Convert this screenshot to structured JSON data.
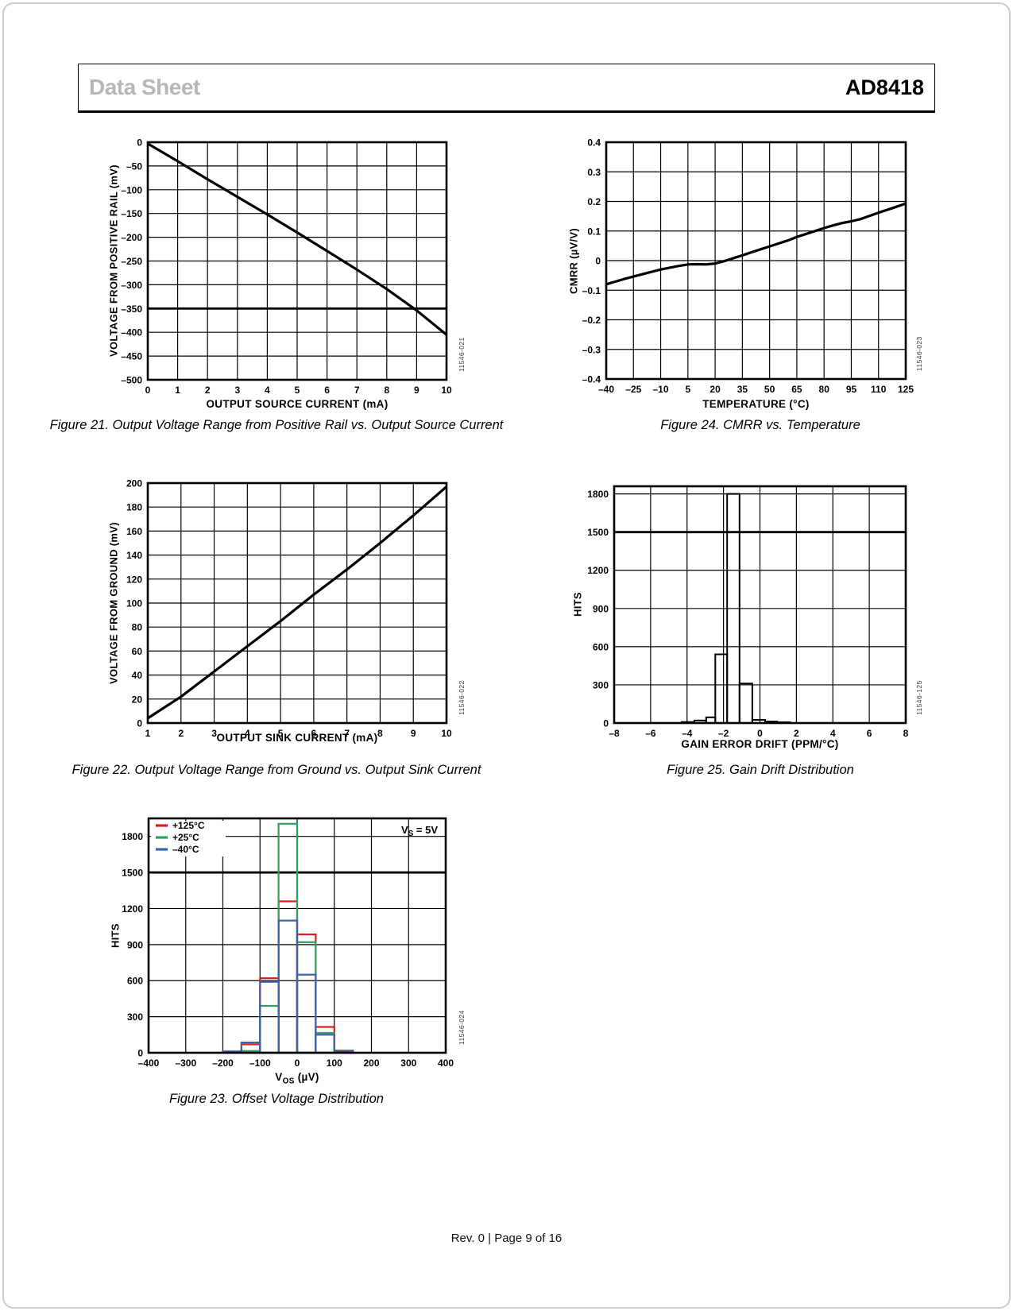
{
  "header": {
    "doc_type": "Data Sheet",
    "part_number": "AD8418"
  },
  "footer": {
    "text": "Rev. 0 | Page 9 of 16"
  },
  "chart_data": [
    {
      "id": "figure-21",
      "type": "line",
      "caption": "Figure 21. Output Voltage Range from Positive Rail vs. Output Source Current",
      "code": "11546-021",
      "xlabel": "OUTPUT SOURCE CURRENT (mA)",
      "ylabel": "VOLTAGE FROM POSITIVE RAIL (mV)",
      "xlim": [
        0,
        10
      ],
      "ylim": [
        -500,
        0
      ],
      "xticks": [
        0,
        1,
        2,
        3,
        4,
        5,
        6,
        7,
        8,
        9,
        10
      ],
      "xtick_labels": [
        "0",
        "1",
        "2",
        "3",
        "4",
        "5",
        "6",
        "7",
        "8",
        "9",
        "10"
      ],
      "yticks": [
        0,
        -50,
        -100,
        -150,
        -200,
        -250,
        -300,
        -350,
        -400,
        -450,
        -500
      ],
      "ytick_labels": [
        "0",
        "–50",
        "–100",
        "–150",
        "–200",
        "–250",
        "–300",
        "–350",
        "–400",
        "–450",
        "–500"
      ],
      "bold_hgrid": [
        -350
      ],
      "grid": true,
      "series": [
        {
          "name": "voltage-from-positive-rail",
          "color": "#000000",
          "width": 3.2,
          "x": [
            0,
            1,
            2,
            3,
            4,
            5,
            6,
            7,
            8,
            9,
            10
          ],
          "y": [
            -3,
            -40,
            -78,
            -115,
            -152,
            -190,
            -229,
            -268,
            -309,
            -354,
            -405
          ]
        }
      ]
    },
    {
      "id": "figure-22",
      "type": "line",
      "caption": "Figure 22. Output Voltage Range from Ground vs. Output Sink Current",
      "code": "11546-022",
      "xlabel": "OUTPUT SINK CURRENT (mA)",
      "ylabel": "VOLTAGE FROM GROUND (mV)",
      "xlim": [
        1,
        10
      ],
      "ylim": [
        0,
        200
      ],
      "xticks": [
        1,
        2,
        3,
        4,
        5,
        6,
        7,
        8,
        9,
        10
      ],
      "xtick_labels": [
        "1",
        "2",
        "3",
        "4",
        "5",
        "6",
        "7",
        "8",
        "9",
        "10"
      ],
      "yticks": [
        200,
        180,
        160,
        140,
        120,
        100,
        80,
        60,
        40,
        20,
        0
      ],
      "ytick_labels": [
        "200",
        "180",
        "160",
        "140",
        "120",
        "100",
        "80",
        "60",
        "40",
        "20",
        "0"
      ],
      "grid": true,
      "series": [
        {
          "name": "voltage-from-ground",
          "color": "#000000",
          "width": 3.2,
          "x": [
            1,
            2,
            3,
            4,
            5,
            6,
            7,
            8,
            9,
            10
          ],
          "y": [
            4,
            22,
            43,
            64,
            85,
            107,
            128,
            150,
            173,
            197
          ]
        }
      ]
    },
    {
      "id": "figure-23",
      "type": "histogram-multi",
      "caption": "Figure 23. Offset Voltage Distribution",
      "code": "11546-024",
      "xlabel_parts": {
        "pre": "V",
        "sub": "OS",
        "post": " (µV)"
      },
      "ylabel": "HITS",
      "xlim": [
        -400,
        400
      ],
      "ylim": [
        0,
        1950
      ],
      "xticks": [
        -400,
        -300,
        -200,
        -100,
        0,
        100,
        200,
        300,
        400
      ],
      "xtick_labels": [
        "–400",
        "–300",
        "–200",
        "–100",
        "0",
        "100",
        "200",
        "300",
        "400"
      ],
      "yticks": [
        0,
        300,
        600,
        900,
        1200,
        1500,
        1800
      ],
      "ytick_labels": [
        "0",
        "300",
        "600",
        "900",
        "1200",
        "1500",
        "1800"
      ],
      "bold_hgrid": [
        1500
      ],
      "grid": true,
      "show_legend": true,
      "annotation": {
        "pre": "V",
        "sub": "S",
        "post": " = 5V"
      },
      "bin_edges": [
        -200,
        -150,
        -100,
        -50,
        0,
        50,
        100,
        150
      ],
      "series": [
        {
          "name": "+125°C",
          "color": "#e01a1f",
          "values": [
            0,
            70,
            620,
            1260,
            985,
            215,
            18
          ]
        },
        {
          "name": "+25°C",
          "color": "#2f9e5f",
          "values": [
            0,
            15,
            390,
            1905,
            920,
            165,
            6
          ]
        },
        {
          "name": "–40°C",
          "color": "#3c61a8",
          "values": [
            12,
            85,
            590,
            1100,
            650,
            150,
            12
          ]
        }
      ]
    },
    {
      "id": "figure-24",
      "type": "line",
      "caption": "Figure 24. CMRR vs. Temperature",
      "code": "11546-023",
      "xlabel": "TEMPERATURE (°C)",
      "ylabel": "CMRR (µV/V)",
      "xlim": [
        -40,
        125
      ],
      "ylim": [
        -0.4,
        0.4
      ],
      "xticks": [
        -40,
        -25,
        -10,
        5,
        20,
        35,
        50,
        65,
        80,
        95,
        110,
        125
      ],
      "xtick_labels": [
        "–40",
        "–25",
        "–10",
        "5",
        "20",
        "35",
        "50",
        "65",
        "80",
        "95",
        "110",
        "125"
      ],
      "yticks": [
        0.4,
        0.3,
        0.2,
        0.1,
        0,
        -0.1,
        -0.2,
        -0.3,
        -0.4
      ],
      "ytick_labels": [
        "0.4",
        "0.3",
        "0.2",
        "0.1",
        "0",
        "–0.1",
        "–0.2",
        "–0.3",
        "–0.4"
      ],
      "grid": true,
      "series": [
        {
          "name": "cmrr",
          "color": "#000000",
          "width": 3.2,
          "x": [
            -40,
            -30,
            -20,
            -10,
            0,
            5,
            10,
            15,
            20,
            25,
            30,
            35,
            45,
            50,
            60,
            65,
            75,
            80,
            85,
            90,
            95,
            100,
            110,
            118,
            125
          ],
          "y": [
            -0.08,
            -0.062,
            -0.046,
            -0.03,
            -0.018,
            -0.013,
            -0.012,
            -0.013,
            -0.01,
            -0.002,
            0.008,
            0.018,
            0.038,
            0.048,
            0.068,
            0.08,
            0.1,
            0.11,
            0.119,
            0.127,
            0.133,
            0.14,
            0.162,
            0.178,
            0.193
          ]
        }
      ]
    },
    {
      "id": "figure-25",
      "type": "histogram",
      "caption": "Figure 25. Gain Drift Distribution",
      "code": "11546-125",
      "xlabel": "GAIN ERROR DRIFT (PPM/°C)",
      "ylabel": "HITS",
      "xlim": [
        -8,
        8
      ],
      "ylim": [
        0,
        1860
      ],
      "xticks": [
        -8,
        -6,
        -4,
        -2,
        0,
        2,
        4,
        6,
        8
      ],
      "xtick_labels": [
        "–8",
        "–6",
        "–4",
        "–2",
        "0",
        "2",
        "4",
        "6",
        "8"
      ],
      "yticks": [
        0,
        300,
        600,
        900,
        1200,
        1500,
        1800
      ],
      "ytick_labels": [
        "0",
        "300",
        "600",
        "900",
        "1200",
        "1500",
        "1800"
      ],
      "bold_hgrid": [
        1500
      ],
      "grid": true,
      "bins": {
        "edges": [
          -4.3,
          -3.6,
          -2.95,
          -2.45,
          -1.8,
          -1.12,
          -0.42,
          0.28,
          0.95,
          1.65
        ],
        "values": [
          8,
          20,
          45,
          540,
          1800,
          310,
          25,
          12,
          6
        ]
      },
      "bar_color": "#000000"
    }
  ]
}
